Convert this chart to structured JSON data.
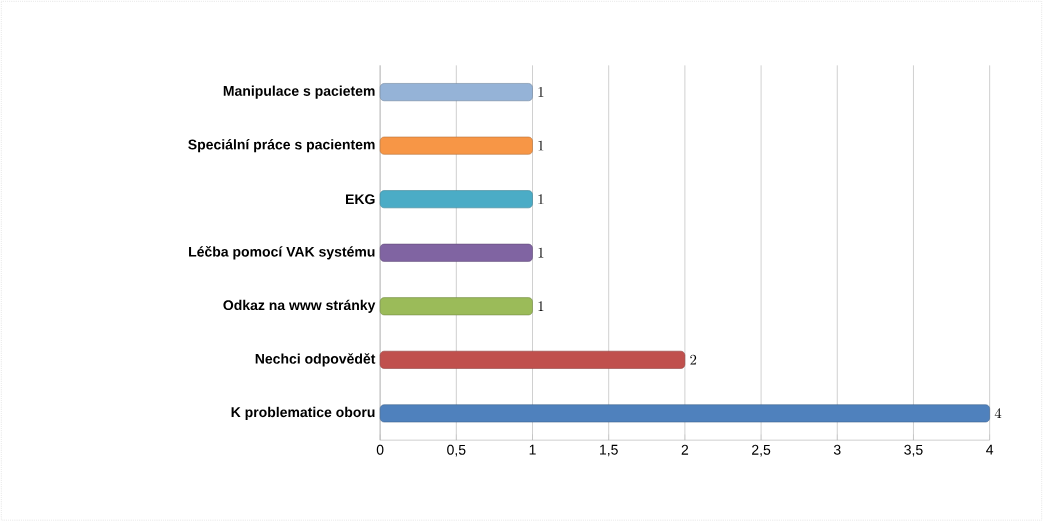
{
  "chart_data": {
    "type": "bar",
    "orientation": "horizontal",
    "categories": [
      "Manipulace s pacietem",
      "Speciální práce s pacientem",
      "EKG",
      "Léčba pomocí VAK systému",
      "Odkaz na www stránky",
      "Nechci odpovědět",
      "K problematice oboru"
    ],
    "values": [
      1,
      1,
      1,
      1,
      1,
      2,
      4
    ],
    "colors": [
      "#95b3d7",
      "#f79646",
      "#4bacc6",
      "#8064a2",
      "#9bbb59",
      "#c0504d",
      "#4f81bd"
    ],
    "xlim": [
      0,
      4
    ],
    "xticks": [
      0,
      {
        "value": 0.5,
        "label": "0,5"
      },
      1,
      {
        "value": 1.5,
        "label": "1,5"
      },
      2,
      {
        "value": 2.5,
        "label": "2,5"
      },
      3,
      {
        "value": 3.5,
        "label": "3,5"
      },
      4
    ],
    "grid": "x",
    "data_labels": true
  }
}
